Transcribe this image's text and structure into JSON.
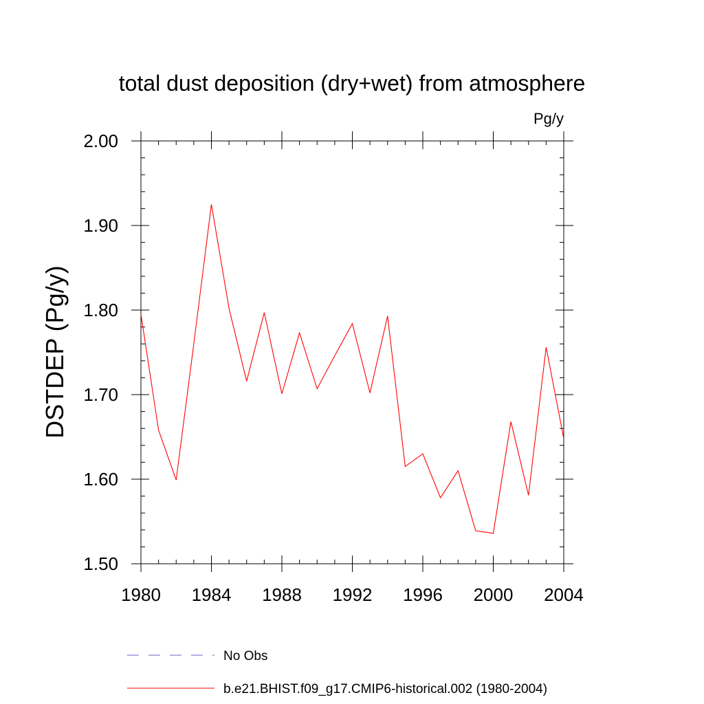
{
  "chart_data": {
    "type": "line",
    "title": "total dust deposition (dry+wet) from atmosphere",
    "units_label": "Pg/y",
    "ylabel": "DSTDEP  (Pg/y)",
    "xlabel": "",
    "xlim": [
      1980,
      2004
    ],
    "ylim": [
      1.5,
      2.0
    ],
    "x_ticks": [
      1980,
      1984,
      1988,
      1992,
      1996,
      2000,
      2004
    ],
    "x_tick_labels": [
      "1980",
      "1984",
      "1988",
      "1992",
      "1996",
      "2000",
      "2004"
    ],
    "y_ticks": [
      1.5,
      1.6,
      1.7,
      1.8,
      1.9,
      2.0
    ],
    "y_tick_labels": [
      "1.50",
      "1.60",
      "1.70",
      "1.80",
      "1.90",
      "2.00"
    ],
    "grid": false,
    "legend_position": "bottom",
    "series": [
      {
        "name": "b.e21.BHIST.f09_g17.CMIP6-historical.002 (1980-2004)",
        "color": "#ff0000",
        "dash": "solid",
        "x": [
          1980,
          1981,
          1982,
          1983,
          1984,
          1985,
          1986,
          1987,
          1988,
          1989,
          1990,
          1991,
          1992,
          1993,
          1994,
          1995,
          1996,
          1997,
          1998,
          1999,
          2000,
          2001,
          2002,
          2003,
          2004
        ],
        "values": [
          1.795,
          1.658,
          1.599,
          1.76,
          1.925,
          1.802,
          1.716,
          1.797,
          1.701,
          1.773,
          1.707,
          1.746,
          1.784,
          1.702,
          1.793,
          1.615,
          1.63,
          1.578,
          1.61,
          1.539,
          1.536,
          1.668,
          1.581,
          1.756,
          1.648
        ]
      }
    ],
    "legend": [
      {
        "label": "No Obs",
        "color": "#6666cc",
        "dash": "dashed"
      },
      {
        "label": "b.e21.BHIST.f09_g17.CMIP6-historical.002 (1980-2004)",
        "color": "#ff0000",
        "dash": "solid"
      }
    ]
  }
}
